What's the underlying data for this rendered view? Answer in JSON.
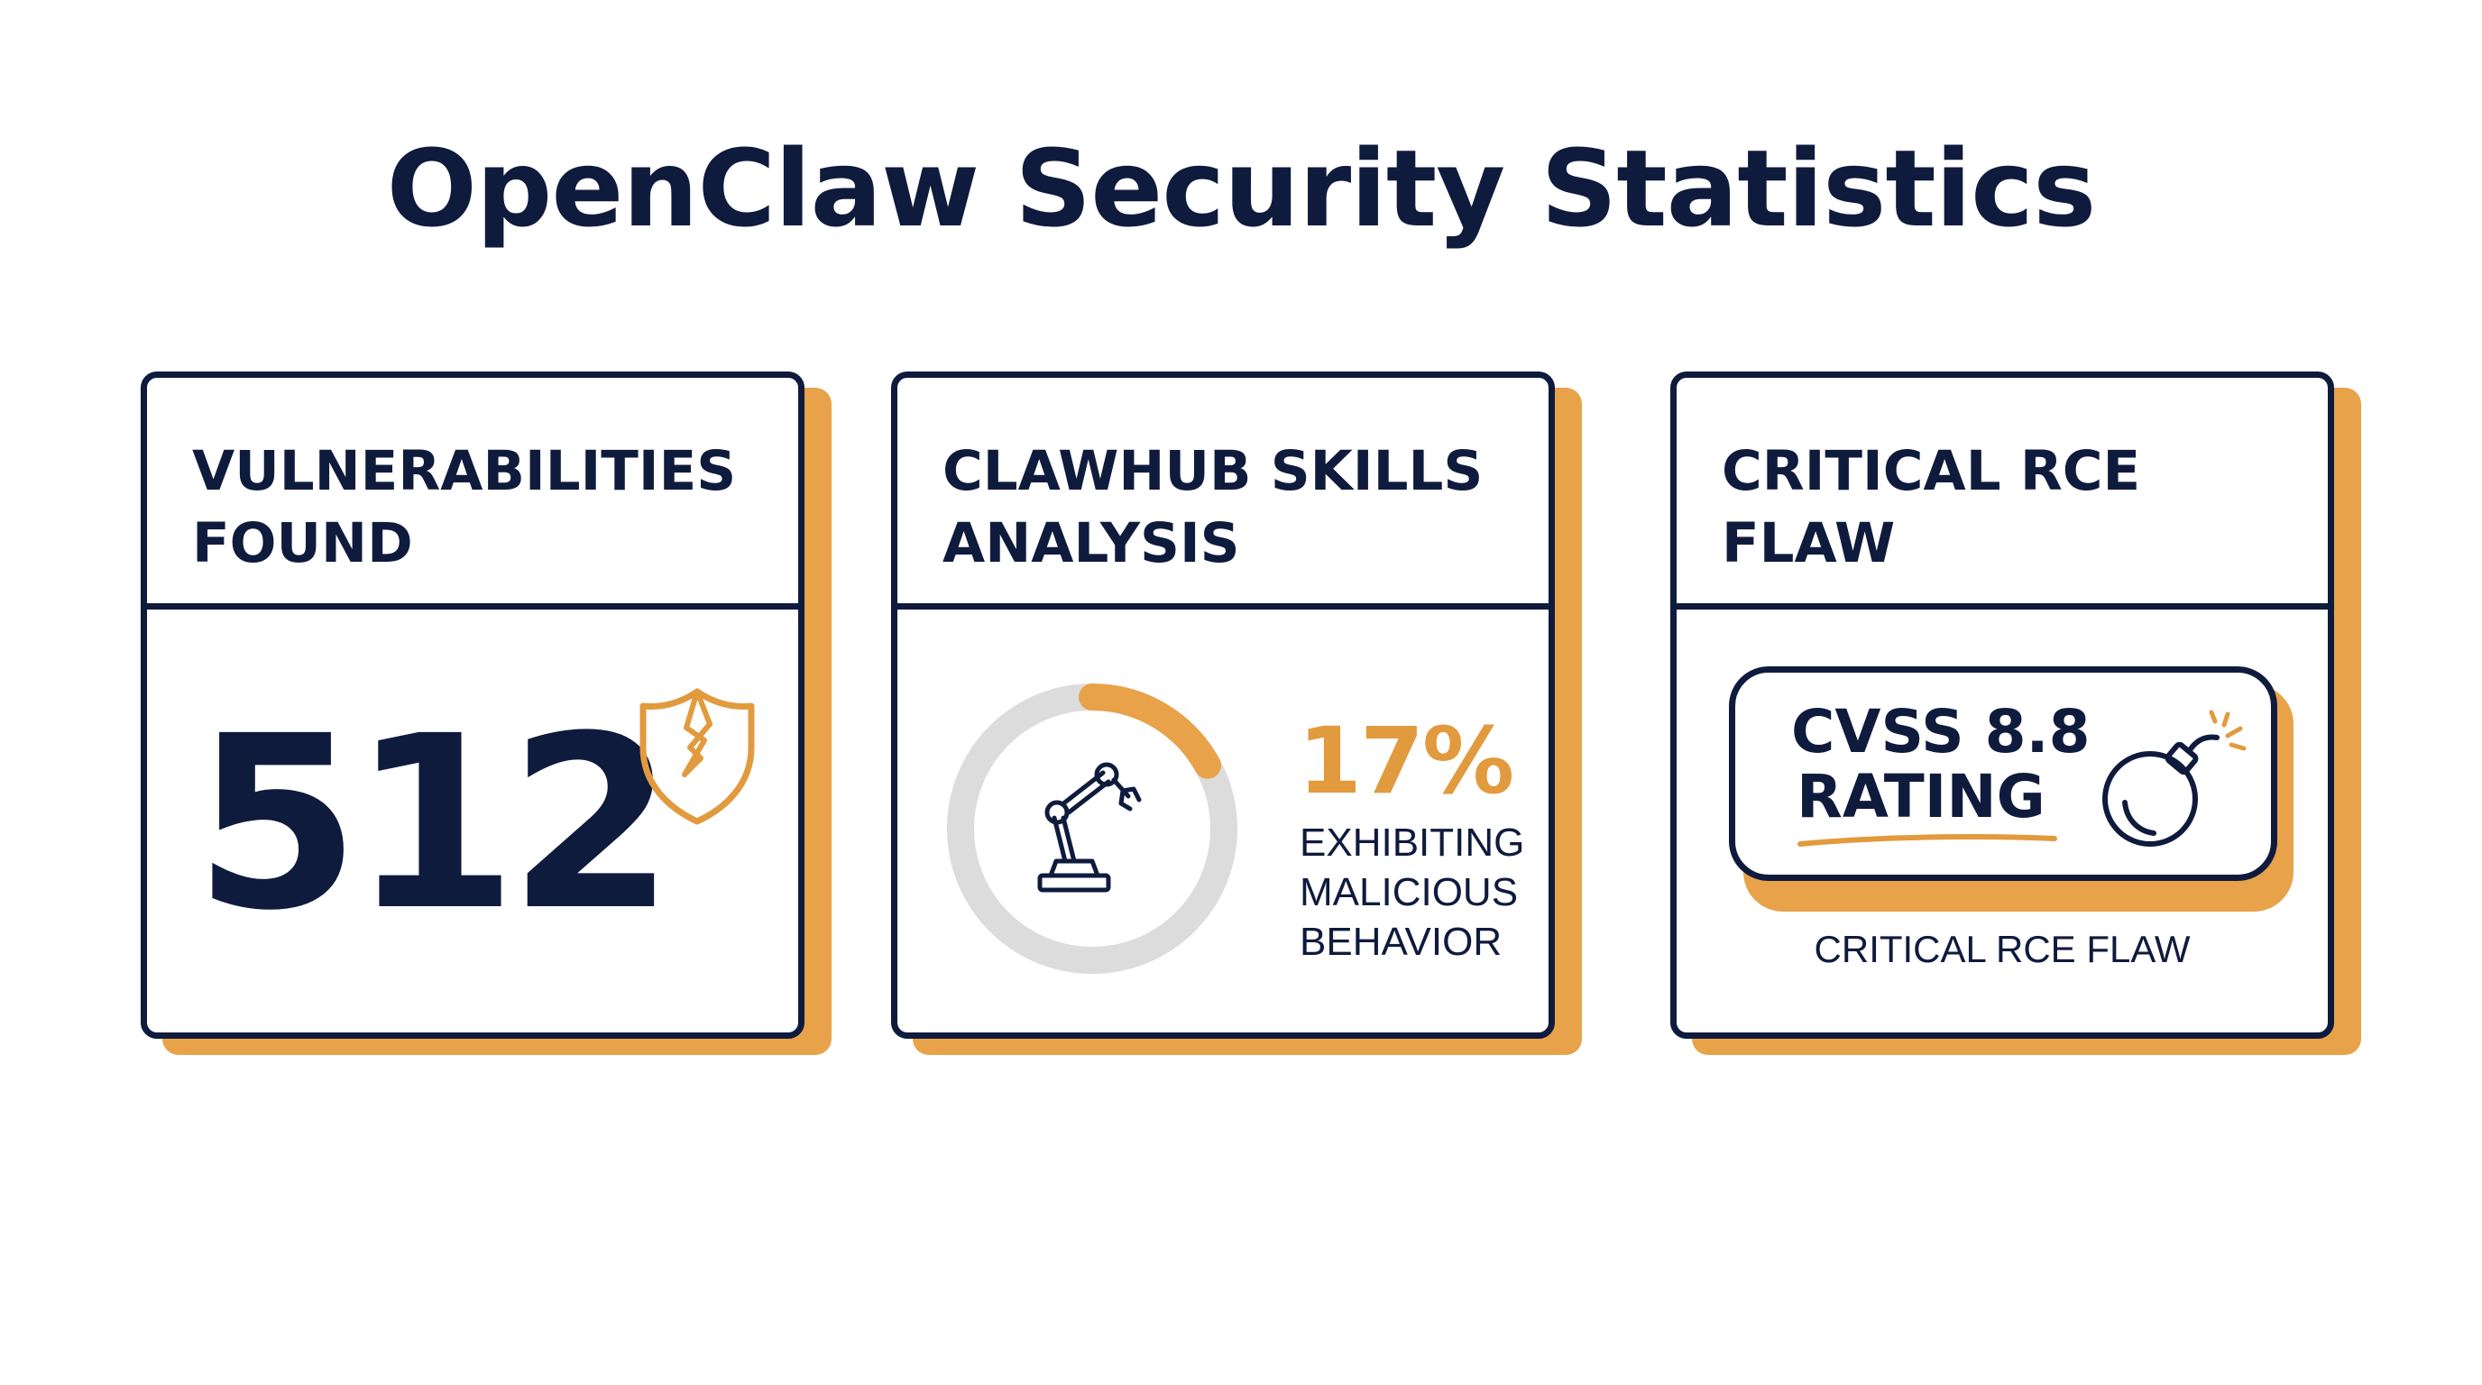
{
  "page": {
    "title": "OpenClaw Security Statistics"
  },
  "colors": {
    "navy": "#0f1b3d",
    "accent": "#e8a24a",
    "accent_text": "#e29a3e",
    "ring_gray": "#dcdcdc",
    "background": "#ffffff"
  },
  "cards": [
    {
      "title_line1": "VULNERABILITIES",
      "title_line2": "FOUND",
      "value": "512",
      "icon": "broken-shield-icon"
    },
    {
      "title_line1": "CLAWHUB SKILLS",
      "title_line2": "ANALYSIS",
      "percent_label": "17%",
      "percent_value": 0.17,
      "desc_line1": "EXHIBITING",
      "desc_line2": "MALICIOUS",
      "desc_line3": "BEHAVIOR",
      "icon": "robot-arm-icon"
    },
    {
      "title_line1": "CRITICAL RCE",
      "title_line2": "FLAW",
      "badge_line1": "CVSS 8.8",
      "badge_line2": "RATING",
      "caption": "CRITICAL RCE FLAW",
      "icon": "bomb-icon"
    }
  ]
}
